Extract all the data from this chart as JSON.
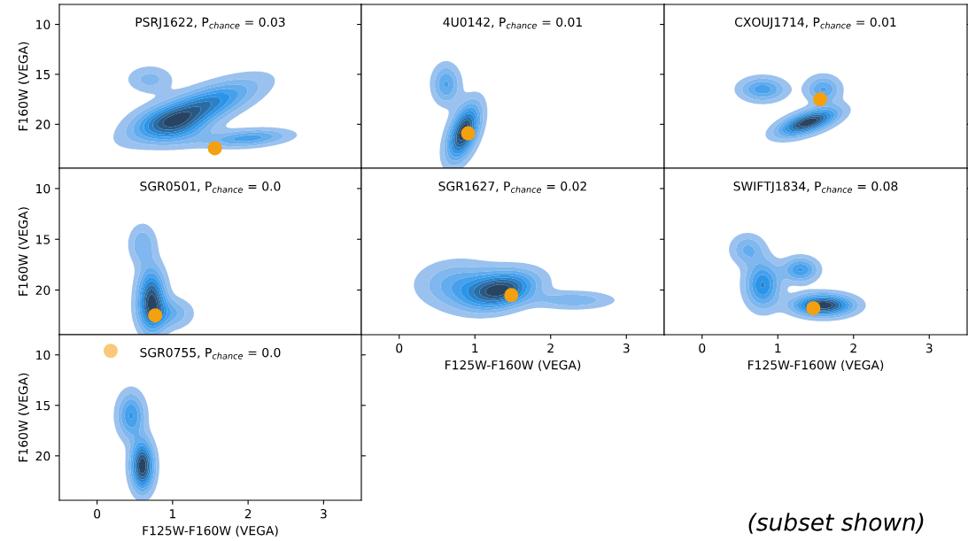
{
  "chart_data": [
    {
      "type": "scatter",
      "title": "PSRJ1622, P$_{chance}$ = 0.03",
      "ylabel": "F160W (VEGA)",
      "marker": "circle",
      "series": [
        {
          "color": "#f5a00f",
          "x": [
            1.56
          ],
          "values": [
            22.4
          ]
        }
      ],
      "xlim": [
        -0.5,
        3.5
      ],
      "ylim": [
        24.4,
        8.0
      ],
      "xticks": [
        0,
        1,
        2,
        3
      ],
      "yticks": [
        10,
        15,
        20
      ],
      "tick_labels": "y"
    },
    {
      "type": "scatter",
      "title": "4U0142, P$_{chance}$ = 0.01",
      "marker": "circle",
      "series": [
        {
          "color": "#f5a00f",
          "x": [
            0.91
          ],
          "values": [
            20.9
          ]
        }
      ],
      "xlim": [
        -0.5,
        3.5
      ],
      "ylim": [
        24.4,
        8.0
      ],
      "xticks": [
        0,
        1,
        2,
        3
      ],
      "yticks": [
        10,
        15,
        20
      ],
      "tick_labels": false
    },
    {
      "type": "scatter",
      "title": "CXOUJ1714, P$_{chance}$ = 0.01",
      "marker": "circle",
      "series": [
        {
          "color": "#f5a00f",
          "x": [
            1.56
          ],
          "values": [
            17.5
          ]
        }
      ],
      "xlim": [
        -0.5,
        3.5
      ],
      "ylim": [
        24.4,
        8.0
      ],
      "xticks": [
        0,
        1,
        2,
        3
      ],
      "yticks": [
        10,
        15,
        20
      ],
      "tick_labels": false
    },
    {
      "type": "scatter",
      "title": "SGR0501, P$_{chance}$ = 0.0",
      "ylabel": "F160W (VEGA)",
      "marker": "circle",
      "series": [
        {
          "color": "#f5a00f",
          "x": [
            0.77
          ],
          "values": [
            22.5
          ]
        }
      ],
      "xlim": [
        -0.5,
        3.5
      ],
      "ylim": [
        24.4,
        8.0
      ],
      "xticks": [
        0,
        1,
        2,
        3
      ],
      "yticks": [
        10,
        15,
        20
      ],
      "tick_labels": "y"
    },
    {
      "type": "scatter",
      "title": "SGR1627, P$_{chance}$ = 0.02",
      "xlabel": "F125W-F160W (VEGA)",
      "marker": "circle",
      "series": [
        {
          "color": "#f5a00f",
          "x": [
            1.48
          ],
          "values": [
            20.5
          ]
        }
      ],
      "xlim": [
        -0.5,
        3.5
      ],
      "ylim": [
        24.4,
        8.0
      ],
      "xticks": [
        0,
        1,
        2,
        3
      ],
      "yticks": [
        10,
        15,
        20
      ],
      "tick_labels": "x"
    },
    {
      "type": "scatter",
      "title": "SWIFTJ1834, P$_{chance}$ = 0.08",
      "xlabel": "F125W-F160W (VEGA)",
      "marker": "circle",
      "series": [
        {
          "color": "#f5a00f",
          "x": [
            1.47
          ],
          "values": [
            21.8
          ]
        }
      ],
      "xlim": [
        -0.5,
        3.5
      ],
      "ylim": [
        24.4,
        8.0
      ],
      "xticks": [
        0,
        1,
        2,
        3
      ],
      "yticks": [
        10,
        15,
        20
      ],
      "tick_labels": "x"
    },
    {
      "type": "scatter",
      "title": "SGR0755, P$_{chance}$ = 0.0",
      "xlabel": "F125W-F160W (VEGA)",
      "ylabel": "F160W (VEGA)",
      "marker": "circle",
      "series": [
        {
          "color": "#fbc87a",
          "x": [
            0.18
          ],
          "values": [
            9.6
          ]
        }
      ],
      "xlim": [
        -0.5,
        3.5
      ],
      "ylim": [
        24.4,
        8.0
      ],
      "xticks": [
        0,
        1,
        2,
        3
      ],
      "yticks": [
        10,
        15,
        20
      ],
      "annotations": [
        "(subset shown)"
      ]
    }
  ]
}
